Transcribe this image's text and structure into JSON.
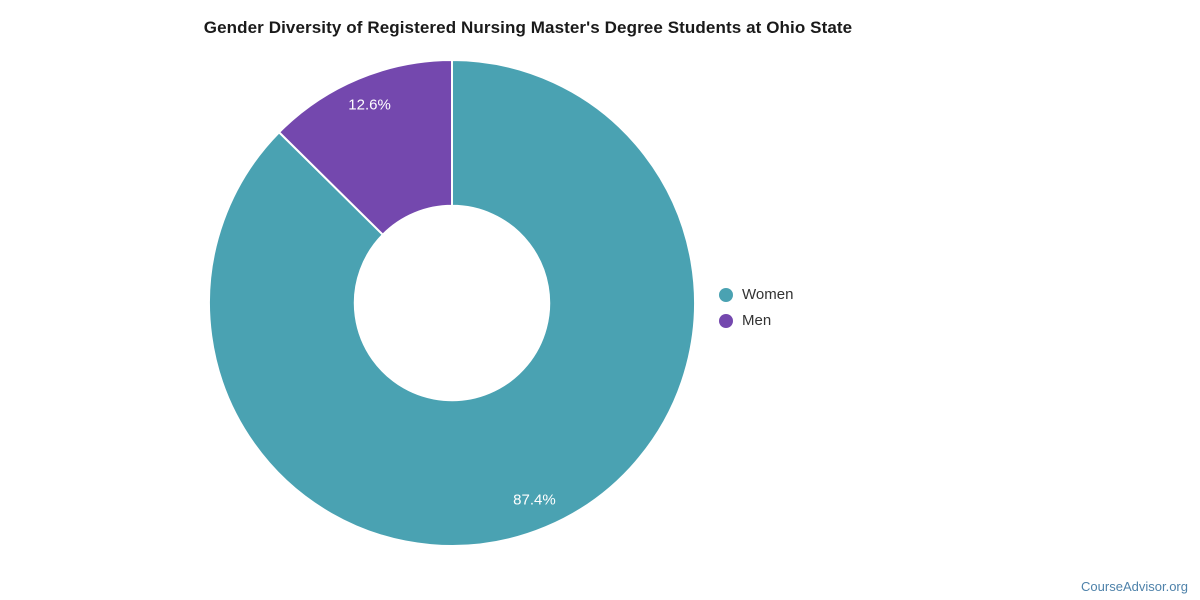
{
  "title": "Gender Diversity of Registered Nursing Master's Degree Students at Ohio State",
  "watermark": "CourseAdvisor.org",
  "legend": {
    "position": "right",
    "items": [
      {
        "label": "Women",
        "color": "#4aa2b2"
      },
      {
        "label": "Men",
        "color": "#7448ae"
      }
    ]
  },
  "chart_data": {
    "type": "pie",
    "subtype": "donut",
    "title": "Gender Diversity of Registered Nursing Master's Degree Students at Ohio State",
    "categories": [
      "Women",
      "Men"
    ],
    "values": [
      87.4,
      12.6
    ],
    "slice_labels": [
      "87.4%",
      "12.6%"
    ],
    "colors": [
      "#4aa2b2",
      "#7448ae"
    ],
    "slice_label_color": "#ffffff",
    "slice_border_color": "#ffffff",
    "start_angle_deg": 0,
    "direction": "clockwise",
    "inner_radius_ratio": 0.4,
    "legend_position": "right",
    "grid": false
  }
}
